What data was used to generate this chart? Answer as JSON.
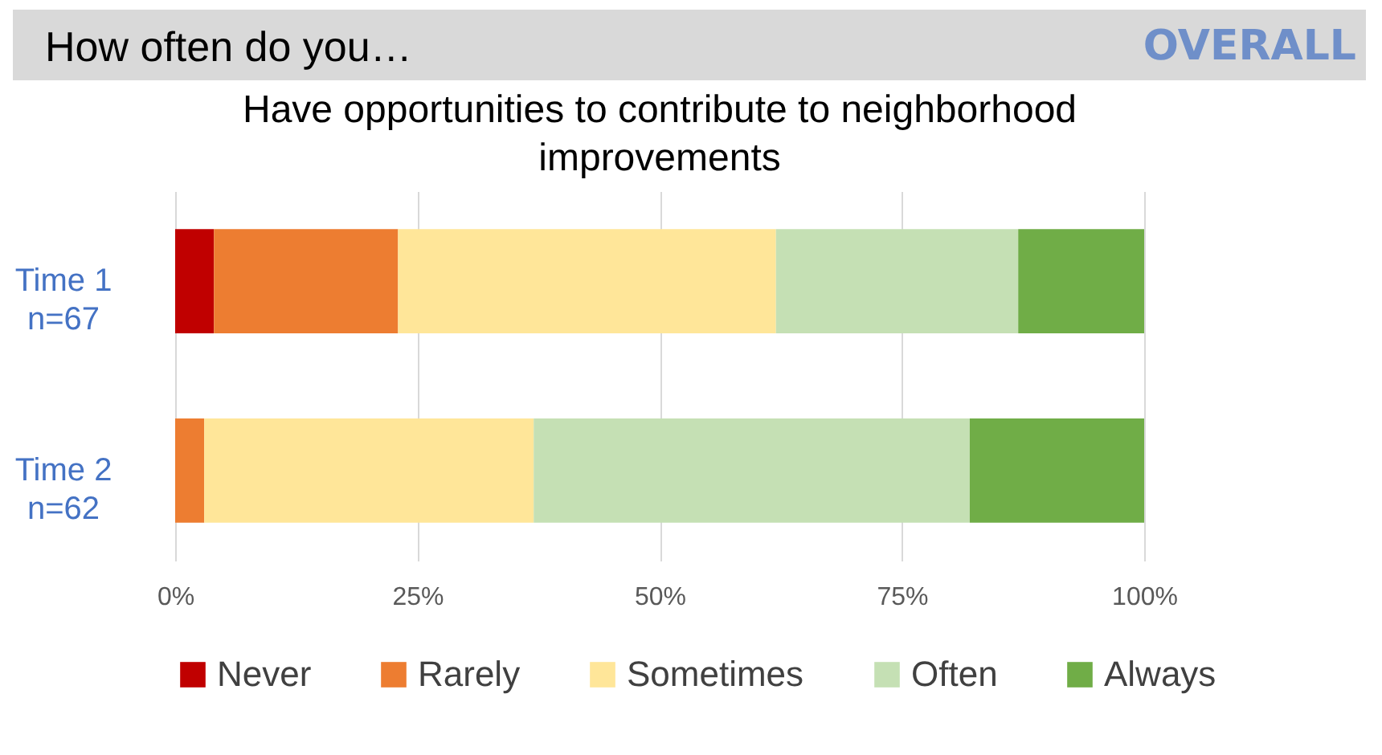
{
  "chart_data": {
    "type": "bar",
    "orientation": "horizontal",
    "stacked": true,
    "title": "How often do you…",
    "subtitle": "Have opportunities to contribute to neighborhood improvements",
    "annotations": [
      "OVERALL"
    ],
    "categories": [
      "Time 1\nn=67",
      "Time 2\nn=62"
    ],
    "series": [
      {
        "name": "Never",
        "color": "#c00000",
        "values": [
          4,
          0
        ]
      },
      {
        "name": "Rarely",
        "color": "#ed7d31",
        "values": [
          19,
          3
        ]
      },
      {
        "name": "Sometimes",
        "color": "#ffe699",
        "values": [
          39,
          34
        ]
      },
      {
        "name": "Often",
        "color": "#c5e0b4",
        "values": [
          25,
          45
        ]
      },
      {
        "name": "Always",
        "color": "#70ad47",
        "values": [
          13,
          18
        ]
      }
    ],
    "xlim": [
      0,
      100
    ],
    "xticks": [
      {
        "value": 0,
        "label": "0%"
      },
      {
        "value": 25,
        "label": "25%"
      },
      {
        "value": 50,
        "label": "50%"
      },
      {
        "value": 75,
        "label": "75%"
      },
      {
        "value": 100,
        "label": "100%"
      }
    ],
    "grid": "x",
    "legend": "bottom"
  }
}
